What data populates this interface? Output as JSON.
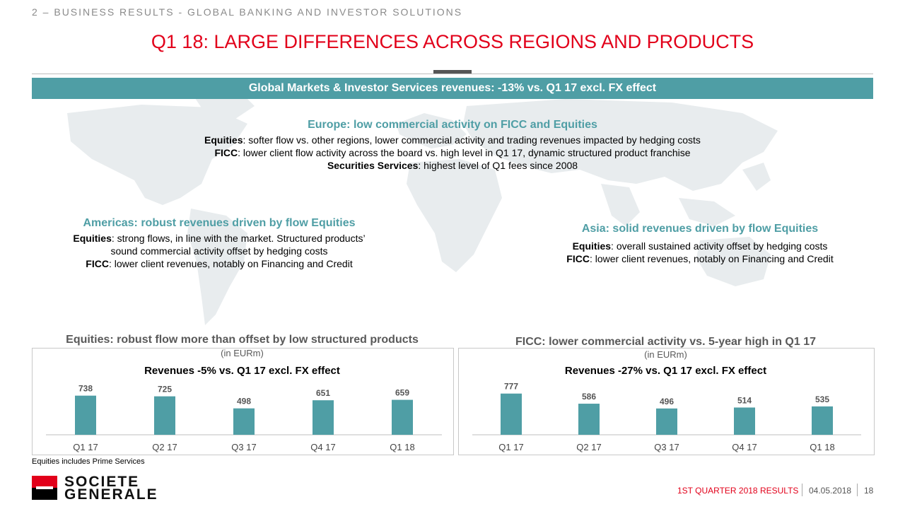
{
  "header": {
    "section": "2 – BUSINESS RESULTS - GLOBAL BANKING AND INVESTOR SOLUTIONS",
    "title": "Q1 18: LARGE DIFFERENCES ACROSS REGIONS AND PRODUCTS"
  },
  "banner": "Global Markets & Investor Services revenues: -13% vs. Q1 17 excl. FX effect",
  "europe": {
    "heading": "Europe: low commercial activity on FICC and Equities",
    "lines": [
      {
        "label": "Equities",
        "text": ": softer flow vs. other regions, lower commercial activity and trading revenues impacted by hedging costs"
      },
      {
        "label": "FICC",
        "text": ": lower client flow activity across the board vs. high level in Q1 17, dynamic structured product franchise"
      },
      {
        "label": "Securities Services",
        "text": ": highest level of Q1 fees since 2008"
      }
    ]
  },
  "americas": {
    "heading": "Americas: robust revenues driven by flow Equities",
    "line1_label": "Equities",
    "line1_text": ": strong flows, in line with the market. Structured products’",
    "line1_cont": "sound commercial activity offset by hedging costs",
    "line2_label": "FICC",
    "line2_text": ": lower client revenues, notably on Financing and Credit"
  },
  "asia": {
    "heading": "Asia: solid revenues driven by flow Equities",
    "line1_label": "Equities",
    "line1_text": ": overall sustained activity offset by hedging costs",
    "line2_label": "FICC",
    "line2_text": ": lower client revenues, notably on Financing and Credit"
  },
  "chart_data": [
    {
      "type": "bar",
      "title": "Equities: robust flow more than offset by low structured products",
      "unit": "(in EURm)",
      "subtitle": "Revenues -5% vs. Q1 17 excl. FX effect",
      "categories": [
        "Q1 17",
        "Q2 17",
        "Q3 17",
        "Q4 17",
        "Q1 18"
      ],
      "values": [
        738,
        725,
        498,
        651,
        659
      ],
      "color": "#4f9ea5"
    },
    {
      "type": "bar",
      "title": "FICC: lower commercial activity vs. 5-year high in Q1 17",
      "unit": "(in EURm)",
      "subtitle": "Revenues -27% vs. Q1 17 excl. FX effect",
      "categories": [
        "Q1 17",
        "Q2 17",
        "Q3 17",
        "Q4 17",
        "Q1 18"
      ],
      "values": [
        777,
        586,
        496,
        514,
        535
      ],
      "color": "#4f9ea5"
    }
  ],
  "footnote": "Equities includes Prime Services",
  "logo": {
    "line1": "SOCIETE",
    "line2": "GENERALE"
  },
  "footer": {
    "report": "1ST QUARTER 2018 RESULTS",
    "date": "04.05.2018",
    "page": "18"
  },
  "colors": {
    "accent": "#4f9ea5",
    "brand_red": "#e2001a"
  }
}
